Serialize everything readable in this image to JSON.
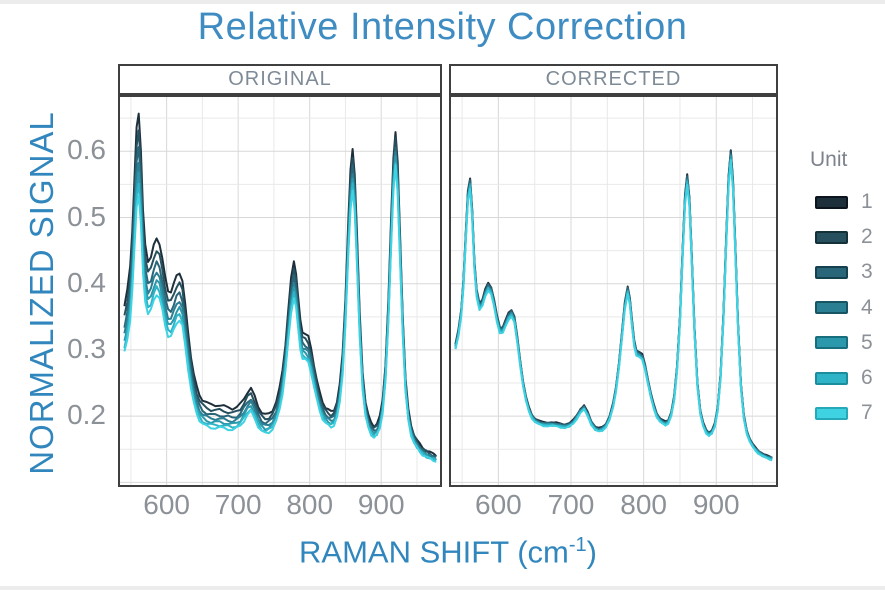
{
  "title": {
    "text": "Relative Intensity Correction"
  },
  "colors": {
    "title_blue": "#3e8cc2",
    "axis_label_blue": "#3187bd",
    "tick_gray": "#8c9197",
    "strip_text": "#7e8b96",
    "panel_border": "#3f3f3f",
    "grid_major": "#d8d8d8",
    "grid_minor": "#e9e9e9"
  },
  "axes": {
    "y_label": "NORMALIZED SIGNAL",
    "x_label_pre": "RAMAN SHIFT (cm",
    "x_label_sup": "-1",
    "x_label_post": ")"
  },
  "chart_data": {
    "type": "line",
    "title": "Relative Intensity Correction",
    "xlabel": "RAMAN SHIFT (cm^-1)",
    "ylabel": "NORMALIZED SIGNAL",
    "facets": [
      {
        "label": "ORIGINAL"
      },
      {
        "label": "CORRECTED"
      }
    ],
    "legend_title": "Unit",
    "x_ticks": [
      600,
      700,
      800,
      900
    ],
    "y_ticks": [
      0.2,
      0.3,
      0.4,
      0.5,
      0.6
    ],
    "x_range": [
      532,
      985
    ],
    "y_range": [
      0.093,
      0.685
    ],
    "grid": {
      "x_start": 550,
      "x_step": 50,
      "y_start": 0.1,
      "y_step": 0.05
    },
    "series_x": [
      541,
      545,
      549,
      552,
      555,
      558,
      561,
      564,
      567,
      570,
      574,
      578,
      582,
      586,
      590,
      594,
      598,
      602,
      606,
      610,
      614,
      618,
      622,
      626,
      630,
      634,
      638,
      642,
      646,
      650,
      656,
      662,
      668,
      674,
      680,
      686,
      692,
      698,
      703,
      708,
      713,
      718,
      723,
      728,
      733,
      738,
      743,
      748,
      753,
      758,
      762,
      766,
      770,
      774,
      778,
      781,
      784,
      787,
      790,
      794,
      798,
      802,
      806,
      810,
      814,
      818,
      822,
      826,
      830,
      834,
      838,
      842,
      846,
      850,
      854,
      857,
      860,
      863,
      866,
      870,
      874,
      878,
      882,
      886,
      890,
      894,
      898,
      902,
      906,
      910,
      914,
      917,
      920,
      923,
      926,
      930,
      934,
      938,
      942,
      946,
      950,
      954,
      958,
      963,
      968,
      973,
      977
    ],
    "base_y": [
      0.305,
      0.325,
      0.357,
      0.402,
      0.468,
      0.532,
      0.552,
      0.505,
      0.428,
      0.386,
      0.366,
      0.371,
      0.386,
      0.396,
      0.39,
      0.371,
      0.347,
      0.331,
      0.33,
      0.34,
      0.351,
      0.356,
      0.346,
      0.315,
      0.28,
      0.249,
      0.226,
      0.21,
      0.2,
      0.194,
      0.19,
      0.188,
      0.188,
      0.188,
      0.187,
      0.186,
      0.185,
      0.187,
      0.191,
      0.199,
      0.208,
      0.213,
      0.203,
      0.19,
      0.182,
      0.179,
      0.181,
      0.186,
      0.197,
      0.216,
      0.241,
      0.276,
      0.321,
      0.366,
      0.391,
      0.374,
      0.34,
      0.31,
      0.296,
      0.293,
      0.289,
      0.274,
      0.252,
      0.231,
      0.214,
      0.202,
      0.195,
      0.191,
      0.189,
      0.192,
      0.203,
      0.226,
      0.271,
      0.347,
      0.456,
      0.526,
      0.558,
      0.524,
      0.443,
      0.329,
      0.248,
      0.206,
      0.187,
      0.177,
      0.173,
      0.176,
      0.186,
      0.211,
      0.261,
      0.352,
      0.472,
      0.556,
      0.594,
      0.549,
      0.458,
      0.334,
      0.244,
      0.198,
      0.176,
      0.164,
      0.156,
      0.15,
      0.146,
      0.142,
      0.139,
      0.137,
      0.136
    ],
    "units": [
      {
        "label": "1",
        "color": "#1e2f3c",
        "legend_border": "#0c151d",
        "original": {
          "a": 1.2,
          "b": -0.16
        },
        "corrected": {
          "a": 1.014,
          "b": 0
        }
      },
      {
        "label": "2",
        "color": "#27505f",
        "legend_border": "#143039",
        "original": {
          "a": 1.15,
          "b": -0.125
        },
        "corrected": {
          "a": 1.009,
          "b": 0
        }
      },
      {
        "label": "3",
        "color": "#2a6679",
        "legend_border": "#15414f",
        "original": {
          "a": 1.1,
          "b": -0.09
        },
        "corrected": {
          "a": 1.005,
          "b": 0
        }
      },
      {
        "label": "4",
        "color": "#2b7f93",
        "legend_border": "#175563",
        "original": {
          "a": 1.062,
          "b": -0.062
        },
        "corrected": {
          "a": 1.0,
          "b": 0
        }
      },
      {
        "label": "5",
        "color": "#2c98ab",
        "legend_border": "#186e7d",
        "original": {
          "a": 1.028,
          "b": -0.038
        },
        "corrected": {
          "a": 0.996,
          "b": 0
        }
      },
      {
        "label": "6",
        "color": "#2fb3c6",
        "legend_border": "#1b8d9d",
        "original": {
          "a": 0.998,
          "b": -0.016
        },
        "corrected": {
          "a": 0.991,
          "b": 0
        }
      },
      {
        "label": "7",
        "color": "#3fd2e2",
        "legend_border": "#25a9b9",
        "original": {
          "a": 0.97,
          "b": 0.004
        },
        "corrected": {
          "a": 0.986,
          "b": 0
        }
      }
    ]
  }
}
